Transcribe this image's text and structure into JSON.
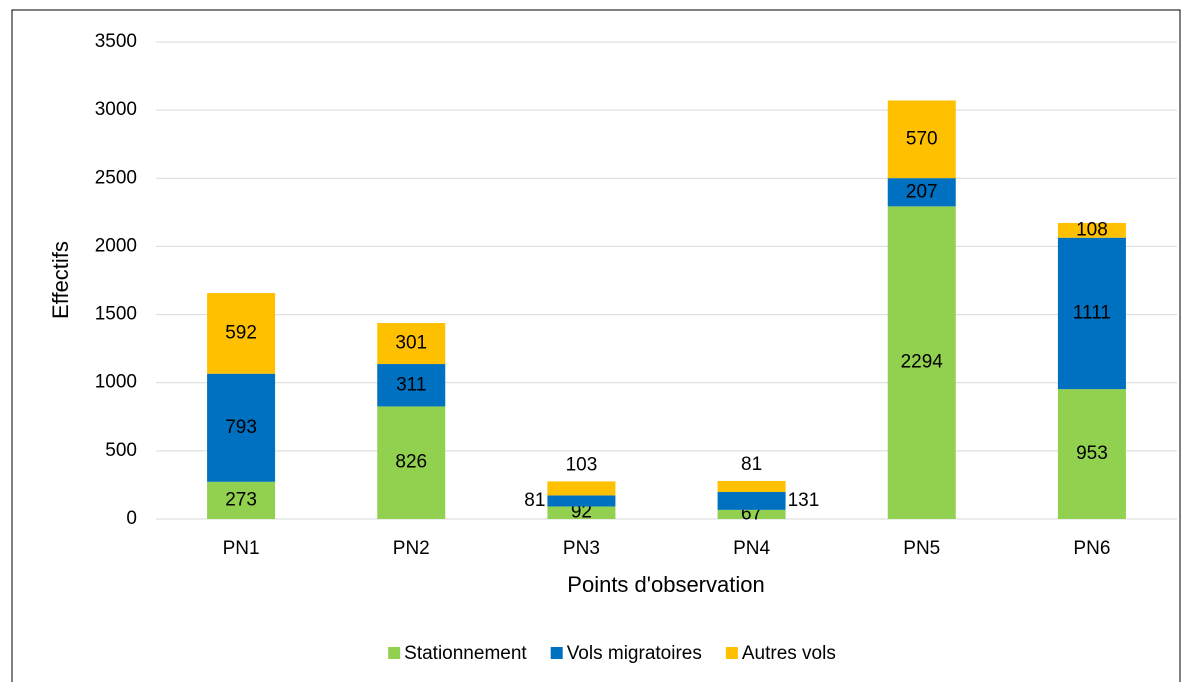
{
  "chart_data": {
    "type": "stacked_bar",
    "categories": [
      "PN1",
      "PN2",
      "PN3",
      "PN4",
      "PN5",
      "PN6"
    ],
    "series": [
      {
        "name": "Stationnement",
        "color": "#92d050",
        "values": [
          273,
          826,
          92,
          67,
          2294,
          953
        ]
      },
      {
        "name": "Vols migratoires",
        "color": "#0070c0",
        "values": [
          793,
          311,
          81,
          131,
          207,
          1111
        ]
      },
      {
        "name": "Autres vols",
        "color": "#ffc000",
        "values": [
          592,
          301,
          103,
          81,
          570,
          108
        ]
      }
    ],
    "xlabel": "Points d'observation",
    "ylabel": "Effectifs",
    "ylim": [
      0,
      3500
    ],
    "yticks": [
      0,
      500,
      1000,
      1500,
      2000,
      2500,
      3000,
      3500
    ],
    "grid": true,
    "legend": "bottom"
  }
}
